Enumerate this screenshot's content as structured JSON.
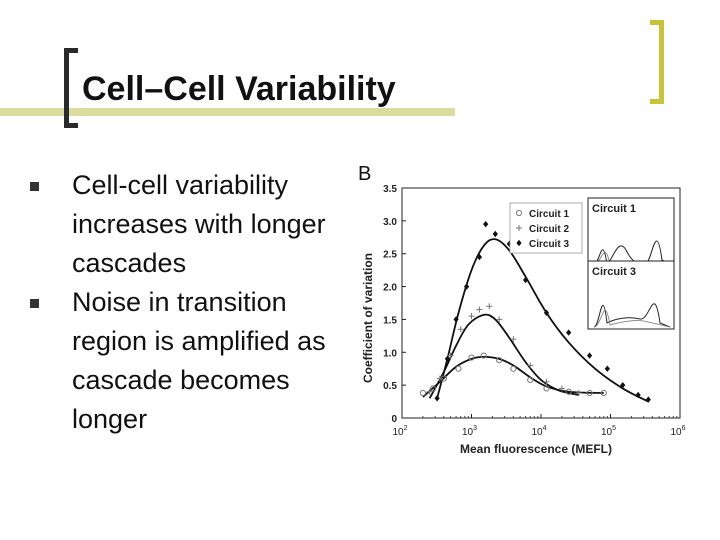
{
  "slide": {
    "title": "Cell–Cell Variability",
    "bullets": [
      "Cell-cell variability increases with longer cascades",
      "Noise in transition region is amplified as cascade becomes longer"
    ]
  },
  "chart_data": {
    "type": "scatter",
    "panel_label": "B",
    "xlabel": "Mean fluorescence (MEFL)",
    "ylabel": "Coefficient of variation",
    "xscale": "log",
    "xlim": [
      100,
      1000000
    ],
    "ylim": [
      0,
      3.5
    ],
    "x_ticks": [
      100,
      1000,
      10000,
      100000,
      1000000
    ],
    "x_tick_labels": [
      [
        "10",
        "2"
      ],
      [
        "10",
        "3"
      ],
      [
        "10",
        "4"
      ],
      [
        "10",
        "5"
      ],
      [
        "10",
        "6"
      ]
    ],
    "y_ticks": [
      0,
      0.5,
      1.0,
      1.5,
      2.0,
      2.5,
      3.0,
      3.5
    ],
    "y_tick_labels": [
      "0",
      "0.5",
      "1.0",
      "1.5",
      "2.0",
      "2.5",
      "3.0",
      "3.5"
    ],
    "legend": {
      "placement": "top-right",
      "entries": [
        {
          "label": "Circuit 1",
          "marker": "circle"
        },
        {
          "label": "Circuit 2",
          "marker": "plus"
        },
        {
          "label": "Circuit 3",
          "marker": "diamond"
        }
      ]
    },
    "insets": [
      {
        "label": "Circuit 1"
      },
      {
        "label": "Circuit 3"
      }
    ],
    "series": [
      {
        "name": "Circuit 1",
        "marker": "circle",
        "points": [
          [
            200,
            0.38
          ],
          [
            280,
            0.45
          ],
          [
            400,
            0.6
          ],
          [
            650,
            0.75
          ],
          [
            1000,
            0.92
          ],
          [
            1500,
            0.95
          ],
          [
            2500,
            0.88
          ],
          [
            4000,
            0.75
          ],
          [
            7000,
            0.58
          ],
          [
            12000,
            0.45
          ],
          [
            25000,
            0.4
          ],
          [
            50000,
            0.38
          ],
          [
            80000,
            0.38
          ]
        ],
        "fit": [
          [
            200,
            0.32
          ],
          [
            350,
            0.55
          ],
          [
            600,
            0.78
          ],
          [
            1000,
            0.9
          ],
          [
            1500,
            0.93
          ],
          [
            2500,
            0.9
          ],
          [
            4000,
            0.8
          ],
          [
            7000,
            0.62
          ],
          [
            12000,
            0.48
          ],
          [
            25000,
            0.4
          ],
          [
            80000,
            0.38
          ]
        ]
      },
      {
        "name": "Circuit 2",
        "marker": "plus",
        "points": [
          [
            250,
            0.4
          ],
          [
            350,
            0.6
          ],
          [
            500,
            0.95
          ],
          [
            700,
            1.35
          ],
          [
            1000,
            1.55
          ],
          [
            1300,
            1.65
          ],
          [
            1800,
            1.7
          ],
          [
            2500,
            1.5
          ],
          [
            4000,
            1.2
          ],
          [
            7000,
            0.8
          ],
          [
            12000,
            0.55
          ],
          [
            20000,
            0.45
          ],
          [
            35000,
            0.38
          ]
        ],
        "fit": [
          [
            250,
            0.3
          ],
          [
            400,
            0.7
          ],
          [
            600,
            1.1
          ],
          [
            900,
            1.42
          ],
          [
            1500,
            1.57
          ],
          [
            2200,
            1.5
          ],
          [
            3500,
            1.22
          ],
          [
            6000,
            0.85
          ],
          [
            10000,
            0.58
          ],
          [
            18000,
            0.42
          ],
          [
            35000,
            0.35
          ]
        ]
      },
      {
        "name": "Circuit 3",
        "marker": "diamond",
        "points": [
          [
            320,
            0.3
          ],
          [
            450,
            0.9
          ],
          [
            600,
            1.5
          ],
          [
            850,
            2.0
          ],
          [
            1300,
            2.45
          ],
          [
            1600,
            2.95
          ],
          [
            2200,
            2.8
          ],
          [
            3500,
            2.65
          ],
          [
            6000,
            2.1
          ],
          [
            12000,
            1.6
          ],
          [
            25000,
            1.3
          ],
          [
            50000,
            0.95
          ],
          [
            90000,
            0.75
          ],
          [
            150000,
            0.5
          ],
          [
            250000,
            0.35
          ],
          [
            350000,
            0.28
          ]
        ],
        "fit": [
          [
            320,
            0.3
          ],
          [
            450,
            0.9
          ],
          [
            650,
            1.6
          ],
          [
            1000,
            2.25
          ],
          [
            1500,
            2.62
          ],
          [
            2200,
            2.72
          ],
          [
            3500,
            2.55
          ],
          [
            6000,
            2.15
          ],
          [
            12000,
            1.6
          ],
          [
            25000,
            1.15
          ],
          [
            60000,
            0.75
          ],
          [
            150000,
            0.45
          ],
          [
            350000,
            0.25
          ]
        ]
      }
    ]
  }
}
